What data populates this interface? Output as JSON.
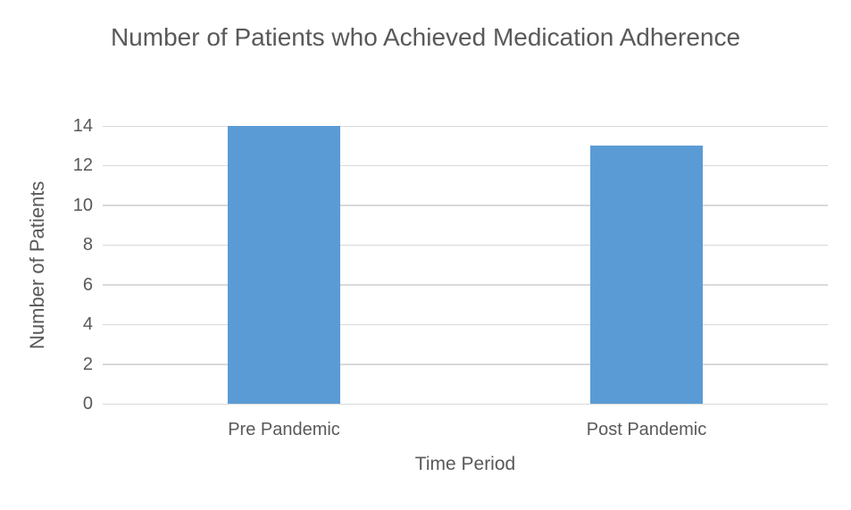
{
  "chart_data": {
    "type": "bar",
    "title": "Number of Patients who Achieved Medication Adherence",
    "categories": [
      "Pre Pandemic",
      "Post Pandemic"
    ],
    "values": [
      14,
      13
    ],
    "xlabel": "Time Period",
    "ylabel": "Number of Patients",
    "ylim": [
      0,
      14
    ],
    "yticks": [
      0,
      2,
      4,
      6,
      8,
      10,
      12,
      14
    ],
    "grid": "horizontal",
    "legend": "none",
    "bar_color": "#5B9BD5",
    "gridline_color": "#D9D9D9",
    "text_color": "#595959",
    "background_color": "#FFFFFF",
    "bar_width_ratio": 0.31
  }
}
